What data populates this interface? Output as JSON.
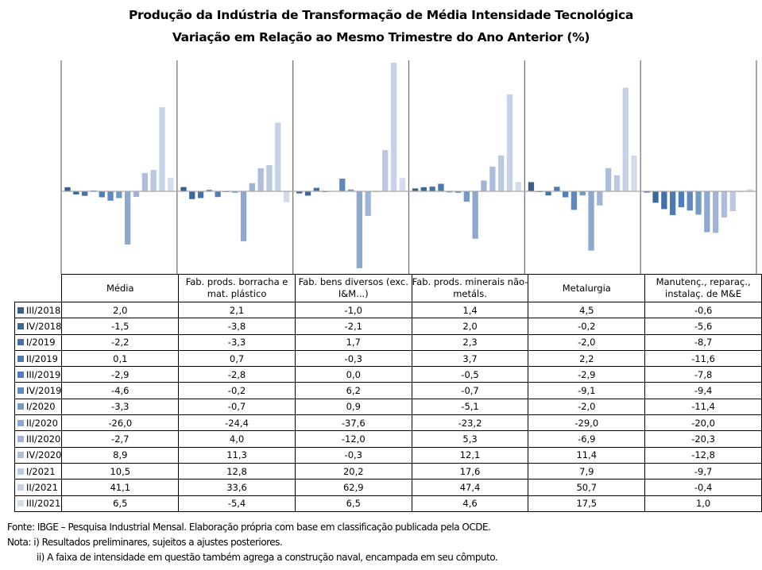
{
  "title_line1": "Produção da Indústria de Transformação de Média Intensidade Tecnológica",
  "title_line2": "Variação em Relação ao Mesmo Trimestre do Ano Anterior (%)",
  "chart_data": {
    "type": "bar",
    "title": "Produção da Indústria de Transformação de Média Intensidade Tecnológica — Variação em Relação ao Mesmo Trimestre do Ano Anterior (%)",
    "xlabel": "",
    "ylabel": "%",
    "ylim": [
      -40,
      65
    ],
    "grid": false,
    "legend_placement": "left (data table)",
    "categories": [
      "Média",
      "Fab. prods. borracha e mat. plástico",
      "Fab. bens diversos (exc. I&M...)",
      "Fab. prods. minerais não-metáls.",
      "Metalurgia",
      "Manutenç., reparaç., instalaç. de M&E"
    ],
    "category_lines": [
      [
        "Média"
      ],
      [
        "Fab. prods. borracha e",
        "mat. plástico"
      ],
      [
        "Fab. bens diversos (exc.",
        "I&M...)"
      ],
      [
        "Fab. prods. minerais não-",
        "metáls."
      ],
      [
        "Metalurgia"
      ],
      [
        "Manutenç., reparaç.,",
        "instalaç. de M&E"
      ]
    ],
    "series": [
      {
        "name": "III/2018",
        "color": "#3a5f8c",
        "values": [
          2.0,
          2.1,
          -1.0,
          1.4,
          4.5,
          -0.6
        ],
        "labels": [
          "2,0",
          "2,1",
          "-1,0",
          "1,4",
          "4,5",
          "-0,6"
        ]
      },
      {
        "name": "IV/2018",
        "color": "#3f6698",
        "values": [
          -1.5,
          -3.8,
          -2.1,
          2.0,
          -0.2,
          -5.6
        ],
        "labels": [
          "-1,5",
          "-3,8",
          "-2,1",
          "2,0",
          "-0,2",
          "-5,6"
        ]
      },
      {
        "name": "I/2019",
        "color": "#4472a8",
        "values": [
          -2.2,
          -3.3,
          1.7,
          2.3,
          -2.0,
          -8.7
        ],
        "labels": [
          "-2,2",
          "-3,3",
          "1,7",
          "2,3",
          "-2,0",
          "-8,7"
        ]
      },
      {
        "name": "II/2019",
        "color": "#4a7ab3",
        "values": [
          0.1,
          0.7,
          -0.3,
          3.7,
          2.2,
          -11.6
        ],
        "labels": [
          "0,1",
          "0,7",
          "-0,3",
          "3,7",
          "2,2",
          "-11,6"
        ]
      },
      {
        "name": "III/2019",
        "color": "#4f7fbb",
        "values": [
          -2.9,
          -2.8,
          0.0,
          -0.5,
          -2.9,
          -7.8
        ],
        "labels": [
          "-2,9",
          "-2,8",
          "0,0",
          "-0,5",
          "-2,9",
          "-7,8"
        ]
      },
      {
        "name": "IV/2019",
        "color": "#5d89c0",
        "values": [
          -4.6,
          -0.2,
          6.2,
          -0.7,
          -9.1,
          -9.4
        ],
        "labels": [
          "-4,6",
          "-0,2",
          "6,2",
          "-0,7",
          "-9,1",
          "-9,4"
        ]
      },
      {
        "name": "I/2020",
        "color": "#7399c7",
        "values": [
          -3.3,
          -0.7,
          0.9,
          -5.1,
          -2.0,
          -11.4
        ],
        "labels": [
          "-3,3",
          "-0,7",
          "0,9",
          "-5,1",
          "-2,0",
          "-11,4"
        ]
      },
      {
        "name": "II/2020",
        "color": "#8da8cf",
        "values": [
          -26.0,
          -24.4,
          -37.6,
          -23.2,
          -29.0,
          -20.0
        ],
        "labels": [
          "-26,0",
          "-24,4",
          "-37,6",
          "-23,2",
          "-29,0",
          "-20,0"
        ]
      },
      {
        "name": "III/2020",
        "color": "#9fb4d6",
        "values": [
          -2.7,
          4.0,
          -12.0,
          5.3,
          -6.9,
          -20.3
        ],
        "labels": [
          "-2,7",
          "4,0",
          "-12,0",
          "5,3",
          "-6,9",
          "-20,3"
        ]
      },
      {
        "name": "IV/2020",
        "color": "#adbddb",
        "values": [
          8.9,
          11.3,
          -0.3,
          12.1,
          11.4,
          -12.8
        ],
        "labels": [
          "8,9",
          "11,3",
          "-0,3",
          "12,1",
          "11,4",
          "-12,8"
        ]
      },
      {
        "name": "I/2021",
        "color": "#bac8e1",
        "values": [
          10.5,
          12.8,
          20.2,
          17.6,
          7.9,
          -9.7
        ],
        "labels": [
          "10,5",
          "12,8",
          "20,2",
          "17,6",
          "7,9",
          "-9,7"
        ]
      },
      {
        "name": "II/2021",
        "color": "#c6d2e5",
        "values": [
          41.1,
          33.6,
          62.9,
          47.4,
          50.7,
          -0.4
        ],
        "labels": [
          "41,1",
          "33,6",
          "62,9",
          "47,4",
          "50,7",
          "-0,4"
        ]
      },
      {
        "name": "III/2021",
        "color": "#d3dceb",
        "values": [
          6.5,
          -5.4,
          6.5,
          4.6,
          17.5,
          1.0
        ],
        "labels": [
          "6,5",
          "-5,4",
          "6,5",
          "4,6",
          "17,5",
          "1,0"
        ]
      }
    ]
  },
  "footnotes": {
    "source": "Fonte: IBGE – Pesquisa Industrial Mensal. Elaboração própria com base em classificação publicada pela OCDE.",
    "note1": "Nota: i) Resultados preliminares, sujeitos a ajustes posteriores.",
    "note2": "ii) A faixa de intensidade em questão também agrega a construção naval, encampada em seu cômputo."
  }
}
